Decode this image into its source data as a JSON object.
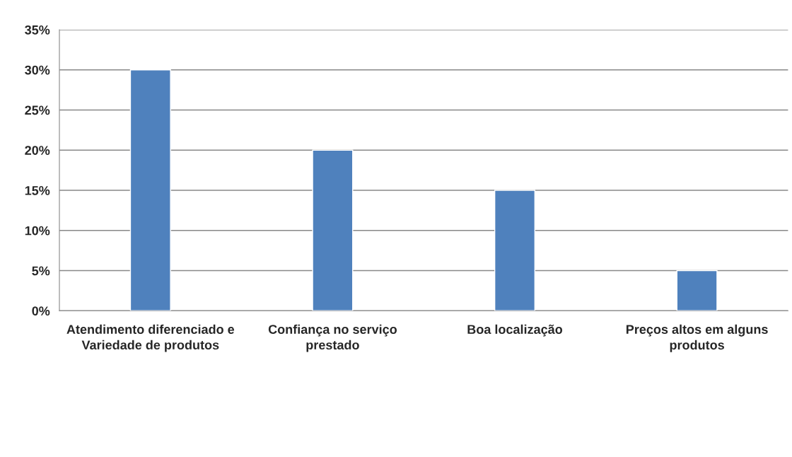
{
  "chart_data": {
    "type": "bar",
    "categories": [
      "Atendimento diferenciado e Variedade de produtos",
      "Confiança no serviço prestado",
      "Boa localização",
      "Preços altos em alguns produtos"
    ],
    "values": [
      30,
      20,
      15,
      5
    ],
    "color": "#4f81bd",
    "ylim": [
      0,
      35
    ],
    "yticks": [
      {
        "value": 0,
        "label": "0%"
      },
      {
        "value": 5,
        "label": "5%"
      },
      {
        "value": 10,
        "label": "10%"
      },
      {
        "value": 15,
        "label": "15%"
      },
      {
        "value": 20,
        "label": "20%"
      },
      {
        "value": 25,
        "label": "25%"
      },
      {
        "value": 30,
        "label": "30%"
      },
      {
        "value": 35,
        "label": "35%"
      }
    ],
    "grid": "y",
    "legend": false
  }
}
